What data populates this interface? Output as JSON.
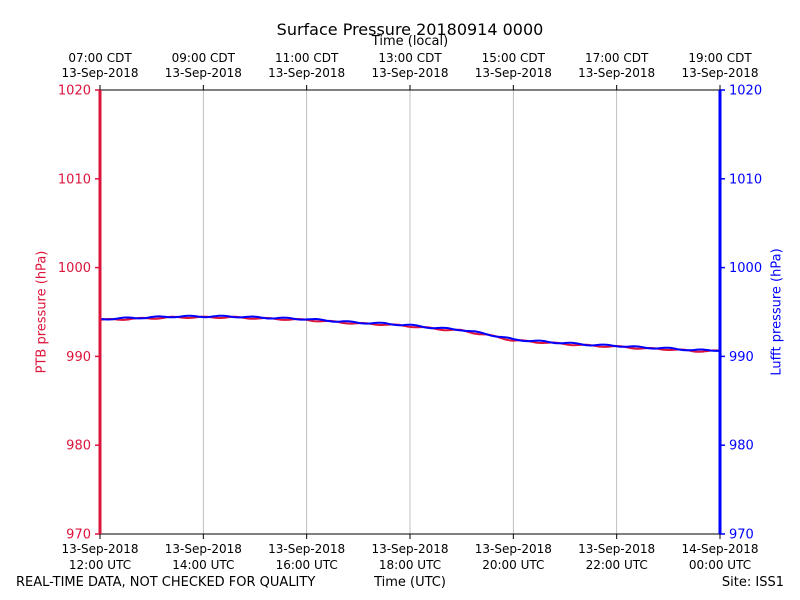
{
  "chart_data": {
    "type": "line",
    "title": "Surface Pressure 20180914 0000",
    "xlabel": "Time (UTC)",
    "x2label": "Time (local)",
    "ylabel": "PTB pressure (hPa)",
    "y2label": "Lufft pressure (hPa)",
    "xlim": [
      "2018-09-13T12:00:00Z",
      "2018-09-14T00:00:00Z"
    ],
    "ylim": [
      970,
      1020
    ],
    "y2lim": [
      970,
      1020
    ],
    "yticks": [
      970,
      980,
      990,
      1000,
      1010,
      1020
    ],
    "xticks": [
      {
        "date": "13-Sep-2018",
        "time": "12:00 UTC",
        "hours": 0
      },
      {
        "date": "13-Sep-2018",
        "time": "14:00 UTC",
        "hours": 2
      },
      {
        "date": "13-Sep-2018",
        "time": "16:00 UTC",
        "hours": 4
      },
      {
        "date": "13-Sep-2018",
        "time": "18:00 UTC",
        "hours": 6
      },
      {
        "date": "13-Sep-2018",
        "time": "20:00 UTC",
        "hours": 8
      },
      {
        "date": "13-Sep-2018",
        "time": "22:00 UTC",
        "hours": 10
      },
      {
        "date": "14-Sep-2018",
        "time": "00:00 UTC",
        "hours": 12
      }
    ],
    "x2ticks": [
      {
        "time": "07:00 CDT",
        "date": "13-Sep-2018",
        "hours": 0
      },
      {
        "time": "09:00 CDT",
        "date": "13-Sep-2018",
        "hours": 2
      },
      {
        "time": "11:00 CDT",
        "date": "13-Sep-2018",
        "hours": 4
      },
      {
        "time": "13:00 CDT",
        "date": "13-Sep-2018",
        "hours": 6
      },
      {
        "time": "15:00 CDT",
        "date": "13-Sep-2018",
        "hours": 8
      },
      {
        "time": "17:00 CDT",
        "date": "13-Sep-2018",
        "hours": 10
      },
      {
        "time": "19:00 CDT",
        "date": "13-Sep-2018",
        "hours": 12
      }
    ],
    "grid": "vertical",
    "series": [
      {
        "name": "PTB pressure",
        "axis": "left",
        "color": "#dc143c",
        "x": [
          "2018-09-13T12:00Z",
          "2018-09-13T12:30Z",
          "2018-09-13T13:00Z",
          "2018-09-13T13:30Z",
          "2018-09-13T14:00Z",
          "2018-09-13T14:30Z",
          "2018-09-13T15:00Z",
          "2018-09-13T15:30Z",
          "2018-09-13T16:00Z",
          "2018-09-13T16:30Z",
          "2018-09-13T17:00Z",
          "2018-09-13T17:30Z",
          "2018-09-13T18:00Z",
          "2018-09-13T18:30Z",
          "2018-09-13T19:00Z",
          "2018-09-13T19:30Z",
          "2018-09-13T20:00Z",
          "2018-09-13T20:30Z",
          "2018-09-13T21:00Z",
          "2018-09-13T21:30Z",
          "2018-09-13T22:00Z",
          "2018-09-13T22:30Z",
          "2018-09-13T23:00Z",
          "2018-09-13T23:30Z",
          "2018-09-14T00:00Z"
        ],
        "y": [
          994.1,
          994.2,
          994.3,
          994.4,
          994.4,
          994.4,
          994.3,
          994.2,
          994.1,
          993.9,
          993.7,
          993.6,
          993.4,
          993.1,
          992.9,
          992.4,
          991.8,
          991.6,
          991.4,
          991.2,
          991.1,
          990.9,
          990.8,
          990.6,
          990.6
        ]
      },
      {
        "name": "Lufft pressure",
        "axis": "right",
        "color": "#0000ff",
        "x": [
          "2018-09-13T12:00Z",
          "2018-09-13T12:30Z",
          "2018-09-13T13:00Z",
          "2018-09-13T13:30Z",
          "2018-09-13T14:00Z",
          "2018-09-13T14:30Z",
          "2018-09-13T15:00Z",
          "2018-09-13T15:30Z",
          "2018-09-13T16:00Z",
          "2018-09-13T16:30Z",
          "2018-09-13T17:00Z",
          "2018-09-13T17:30Z",
          "2018-09-13T18:00Z",
          "2018-09-13T18:30Z",
          "2018-09-13T19:00Z",
          "2018-09-13T19:30Z",
          "2018-09-13T20:00Z",
          "2018-09-13T20:30Z",
          "2018-09-13T21:00Z",
          "2018-09-13T21:30Z",
          "2018-09-13T22:00Z",
          "2018-09-13T22:30Z",
          "2018-09-13T23:00Z",
          "2018-09-13T23:30Z",
          "2018-09-14T00:00Z"
        ],
        "y": [
          994.2,
          994.3,
          994.4,
          994.5,
          994.5,
          994.5,
          994.4,
          994.3,
          994.2,
          994.0,
          993.8,
          993.7,
          993.5,
          993.2,
          993.0,
          992.5,
          991.9,
          991.7,
          991.5,
          991.3,
          991.2,
          991.0,
          990.9,
          990.7,
          990.7
        ]
      }
    ]
  },
  "footer": {
    "left": "REAL-TIME DATA, NOT CHECKED FOR QUALITY",
    "right": "Site: ISS1"
  }
}
